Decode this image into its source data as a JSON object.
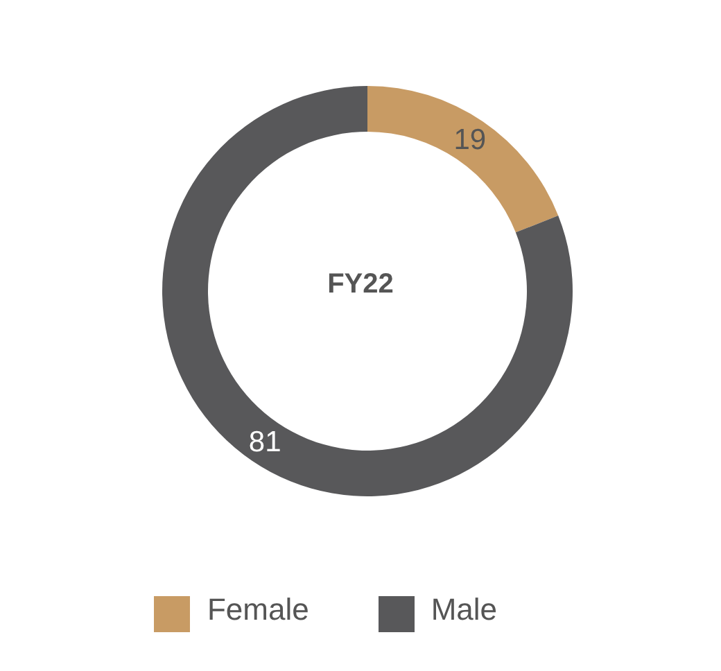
{
  "chart_data": {
    "type": "donut",
    "title": "FY22",
    "categories": [
      "Female",
      "Male"
    ],
    "values": [
      19,
      81
    ],
    "colors": [
      "#c89b64",
      "#58585a"
    ],
    "data_labels": true,
    "legend": "bottom"
  }
}
